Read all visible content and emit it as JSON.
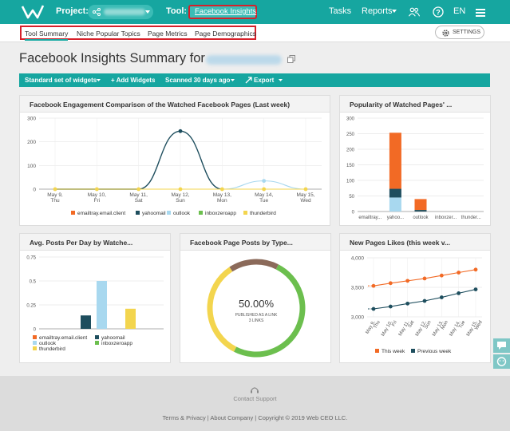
{
  "header": {
    "project_label": "Project:",
    "tool_label": "Tool:",
    "tool_value": "Facebook Insights",
    "tasks": "Tasks",
    "reports": "Reports",
    "language": "EN"
  },
  "subnav": {
    "tabs": [
      {
        "label": "Tool Summary"
      },
      {
        "label": "Niche Popular Topics"
      },
      {
        "label": "Page Metrics"
      },
      {
        "label": "Page Demographics"
      }
    ],
    "settings": "SETTINGS"
  },
  "page": {
    "title": "Facebook Insights Summary for"
  },
  "toolbar": {
    "widgets": "Standard set of widgets",
    "add": "+ Add Widgets",
    "scanned": "Scanned 30 days ago",
    "export": "Export"
  },
  "colors": {
    "teal": "#16a6a0",
    "emailtray": "#f26a25",
    "yahoomail": "#1e4e5e",
    "outlook": "#a8d8ef",
    "inboxzeroapp": "#6cbf4e",
    "thunderbird": "#f3d54e",
    "posts_brown": "#8b6a5a"
  },
  "widgets": {
    "engagement": {
      "title": "Facebook Engagement Comparison of the Watched Facebook Pages (Last week)",
      "chart_data": {
        "type": "line",
        "x": [
          "May 9, Thu",
          "May 10, Fri",
          "May 11, Sat",
          "May 12, Sun",
          "May 13, Mon",
          "May 14, Tue",
          "May 15, Wed"
        ],
        "ylim": [
          0,
          300
        ],
        "yticks": [
          "0",
          "100",
          "200",
          "300"
        ],
        "series": [
          {
            "name": "emailtray.email.client",
            "values": [
              0,
              0,
              0,
              0,
              0,
              0,
              0
            ]
          },
          {
            "name": "yahoomail",
            "values": [
              0,
              0,
              0,
              245,
              0,
              null,
              null
            ]
          },
          {
            "name": "outlook",
            "values": [
              null,
              null,
              null,
              null,
              0,
              35,
              0
            ]
          },
          {
            "name": "inboxzeroapp",
            "values": [
              0,
              0,
              0,
              0,
              0,
              0,
              0
            ]
          },
          {
            "name": "thunderbird",
            "values": [
              0,
              0,
              0,
              0,
              0,
              0,
              0
            ]
          }
        ]
      }
    },
    "popularity": {
      "title": "Popularity of Watched Pages' ...",
      "chart_data": {
        "type": "bar",
        "categories": [
          "emailtray...",
          "yahoo...",
          "outlook",
          "inboxzer...",
          "thunder..."
        ],
        "ylim": [
          0,
          300
        ],
        "yticks": [
          "0",
          "50",
          "100",
          "150",
          "200",
          "250",
          "300"
        ],
        "series": [
          {
            "name": "emailtray",
            "values": [
              0,
              180,
              35,
              0,
              0
            ]
          },
          {
            "name": "yahoomail",
            "values": [
              0,
              28,
              5,
              0,
              0
            ]
          },
          {
            "name": "outlook",
            "values": [
              0,
              45,
              0,
              0,
              0
            ]
          }
        ]
      }
    },
    "avgposts": {
      "title": "Avg. Posts Per Day by Watche...",
      "chart_data": {
        "type": "bar",
        "categories": [
          "emailtray.email.client",
          "yahoomail",
          "outlook",
          "inboxzeroapp",
          "thunderbird"
        ],
        "values": [
          0,
          0.14,
          0.5,
          0,
          0.21
        ],
        "ylim": [
          0,
          0.75
        ],
        "yticks": [
          "0",
          "0.25",
          "0.5",
          "0.75"
        ]
      }
    },
    "pageposts": {
      "title": "Facebook Page Posts by Type...",
      "percent": "50.00%",
      "subtitle1": "PUBLISHED AS A LINK",
      "subtitle2": "3 LINKS",
      "chart_data": {
        "type": "pie",
        "slices": [
          {
            "value": 16.67,
            "color": "#8b6a5a"
          },
          {
            "value": 50.0,
            "color": "#6cbf4e"
          },
          {
            "value": 33.33,
            "color": "#f3d54e"
          }
        ]
      }
    },
    "likes": {
      "title": "New Pages Likes (this week v...",
      "chart_data": {
        "type": "line",
        "x": [
          "May 9, Thu",
          "May 10, Fri",
          "May 11, Sat",
          "May 12, Sun",
          "May 13, Mon",
          "May 14, Tue",
          "May 15, Wed"
        ],
        "ylim": [
          3000,
          4000
        ],
        "yticks": [
          "3,000",
          "3,500",
          "4,000"
        ],
        "series": [
          {
            "name": "This week",
            "values": [
              3525,
              3570,
              3610,
              3650,
              3700,
              3750,
              3800
            ]
          },
          {
            "name": "Previous week",
            "values": [
              3135,
              3175,
              3225,
              3270,
              3330,
              3400,
              3465
            ]
          }
        ]
      }
    }
  },
  "footer": {
    "support": "Contact Support",
    "copyright": "Terms & Privacy | About Company | Copyright © 2019 Web CEO LLC."
  }
}
